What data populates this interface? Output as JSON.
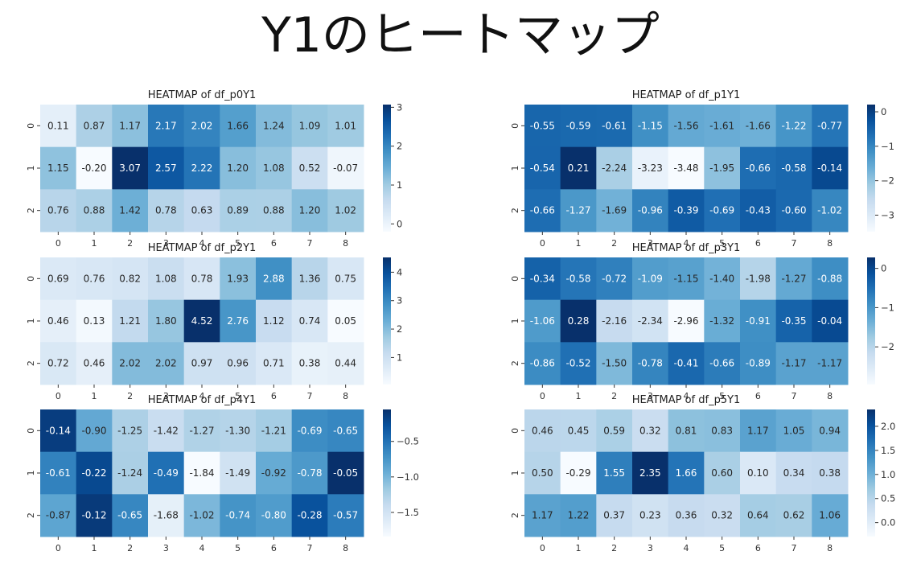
{
  "page": {
    "title": "Y1のヒートマップ"
  },
  "colors": {
    "low": "#f7fbff",
    "high": "#08306b",
    "dark_text": "#262626",
    "light_text": "#ffffff"
  },
  "chart_data": [
    {
      "type": "heatmap",
      "title": "HEATMAP of df_p0Y1",
      "x_tick_labels": [
        "0",
        "1",
        "2",
        "3",
        "4",
        "5",
        "6",
        "7",
        "8"
      ],
      "y_tick_labels": [
        "0",
        "1",
        "2"
      ],
      "values": [
        [
          0.11,
          0.87,
          1.17,
          2.17,
          2.02,
          1.66,
          1.24,
          1.09,
          1.01
        ],
        [
          1.15,
          -0.2,
          3.07,
          2.57,
          2.22,
          1.2,
          1.08,
          0.52,
          -0.07
        ],
        [
          0.76,
          0.88,
          1.42,
          0.78,
          0.63,
          0.89,
          0.88,
          1.2,
          1.02
        ]
      ],
      "colorbar": {
        "min": -0.2,
        "max": 3.07,
        "ticks": [
          0,
          1,
          2,
          3
        ],
        "tick_labels": [
          "0",
          "1",
          "2",
          "3"
        ],
        "colormap": "Blues"
      }
    },
    {
      "type": "heatmap",
      "title": "HEATMAP of df_p1Y1",
      "x_tick_labels": [
        "0",
        "1",
        "2",
        "3",
        "4",
        "5",
        "6",
        "7",
        "8"
      ],
      "y_tick_labels": [
        "0",
        "1",
        "2"
      ],
      "values": [
        [
          -0.55,
          -0.59,
          -0.61,
          -1.15,
          -1.56,
          -1.61,
          -1.66,
          -1.22,
          -0.77
        ],
        [
          -0.54,
          0.21,
          -2.24,
          -3.23,
          -3.48,
          -1.95,
          -0.66,
          -0.58,
          -0.14
        ],
        [
          -0.66,
          -1.27,
          -1.69,
          -0.96,
          -0.39,
          -0.69,
          -0.43,
          -0.6,
          -1.02
        ]
      ],
      "colorbar": {
        "min": -3.48,
        "max": 0.21,
        "ticks": [
          0,
          -1,
          -2,
          -3
        ],
        "tick_labels": [
          "0",
          "−1",
          "−2",
          "−3"
        ],
        "colormap": "Blues"
      }
    },
    {
      "type": "heatmap",
      "title": "HEATMAP of df_p2Y1",
      "x_tick_labels": [
        "0",
        "1",
        "2",
        "3",
        "4",
        "5",
        "6",
        "7",
        "8"
      ],
      "y_tick_labels": [
        "0",
        "1",
        "2"
      ],
      "values": [
        [
          0.69,
          0.76,
          0.82,
          1.08,
          0.78,
          1.93,
          2.88,
          1.36,
          0.75
        ],
        [
          0.46,
          0.13,
          1.21,
          1.8,
          4.52,
          2.76,
          1.12,
          0.74,
          0.05
        ],
        [
          0.72,
          0.46,
          2.02,
          2.02,
          0.97,
          0.96,
          0.71,
          0.38,
          0.44
        ]
      ],
      "colorbar": {
        "min": 0.05,
        "max": 4.52,
        "ticks": [
          1,
          2,
          3,
          4
        ],
        "tick_labels": [
          "1",
          "2",
          "3",
          "4"
        ],
        "colormap": "Blues"
      }
    },
    {
      "type": "heatmap",
      "title": "HEATMAP of df_p3Y1",
      "x_tick_labels": [
        "0",
        "1",
        "2",
        "3",
        "4",
        "5",
        "6",
        "7",
        "8"
      ],
      "y_tick_labels": [
        "0",
        "1",
        "2"
      ],
      "values": [
        [
          -0.34,
          -0.58,
          -0.72,
          -1.09,
          -1.15,
          -1.4,
          -1.98,
          -1.27,
          -0.88
        ],
        [
          -1.06,
          0.28,
          -2.16,
          -2.34,
          -2.96,
          -1.32,
          -0.91,
          -0.35,
          -0.04
        ],
        [
          -0.86,
          -0.52,
          -1.5,
          -0.78,
          -0.41,
          -0.66,
          -0.89,
          -1.17,
          -1.17
        ]
      ],
      "colorbar": {
        "min": -2.96,
        "max": 0.28,
        "ticks": [
          0,
          -1,
          -2
        ],
        "tick_labels": [
          "0",
          "−1",
          "−2"
        ],
        "colormap": "Blues"
      }
    },
    {
      "type": "heatmap",
      "title": "HEATMAP of df_p4Y1",
      "x_tick_labels": [
        "0",
        "1",
        "2",
        "3",
        "4",
        "5",
        "6",
        "7",
        "8"
      ],
      "y_tick_labels": [
        "0",
        "1",
        "2"
      ],
      "values": [
        [
          -0.14,
          -0.9,
          -1.25,
          -1.42,
          -1.27,
          -1.3,
          -1.21,
          -0.69,
          -0.65
        ],
        [
          -0.61,
          -0.22,
          -1.24,
          -0.49,
          -1.84,
          -1.49,
          -0.92,
          -0.78,
          -0.05
        ],
        [
          -0.87,
          -0.12,
          -0.65,
          -1.68,
          -1.02,
          -0.74,
          -0.8,
          -0.28,
          -0.57
        ]
      ],
      "colorbar": {
        "min": -1.84,
        "max": -0.05,
        "ticks": [
          -0.5,
          -1.0,
          -1.5
        ],
        "tick_labels": [
          "−0.5",
          "−1.0",
          "−1.5"
        ],
        "colormap": "Blues"
      }
    },
    {
      "type": "heatmap",
      "title": "HEATMAP of df_p5Y1",
      "x_tick_labels": [
        "0",
        "1",
        "2",
        "3",
        "4",
        "5",
        "6",
        "7",
        "8"
      ],
      "y_tick_labels": [
        "0",
        "1",
        "2"
      ],
      "values": [
        [
          0.46,
          0.45,
          0.59,
          0.32,
          0.81,
          0.83,
          1.17,
          1.05,
          0.94
        ],
        [
          0.5,
          -0.29,
          1.55,
          2.35,
          1.66,
          0.6,
          0.1,
          0.34,
          0.38
        ],
        [
          1.17,
          1.22,
          0.37,
          0.23,
          0.36,
          0.32,
          0.64,
          0.62,
          1.06
        ]
      ],
      "colorbar": {
        "min": -0.29,
        "max": 2.35,
        "ticks": [
          2.0,
          1.5,
          1.0,
          0.5,
          0.0
        ],
        "tick_labels": [
          "2.0",
          "1.5",
          "1.0",
          "0.5",
          "0.0"
        ],
        "colormap": "Blues"
      }
    }
  ]
}
